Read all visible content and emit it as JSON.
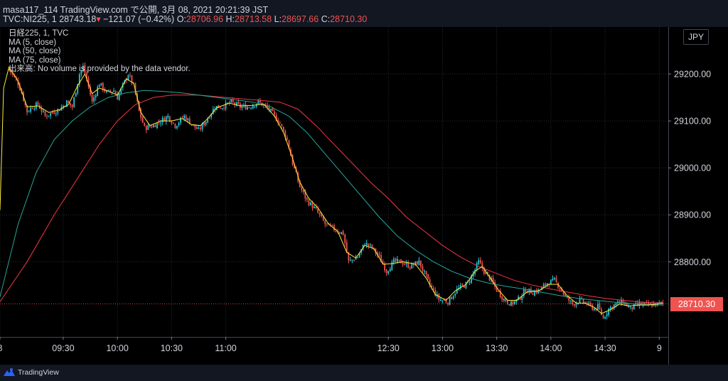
{
  "header": {
    "line1": "masa117_114 TradingView.com で公開, 3月 08, 2021 20:21:39 JST",
    "symbol": "TVC:NI225, 1",
    "last": "28743.18",
    "change": "−121.07 (−0.42%)",
    "o_label": "O:",
    "o_value": "28706.96",
    "h_label": "H:",
    "h_value": "28713.58",
    "l_label": "L:",
    "l_value": "28697.66",
    "c_label": "C:",
    "c_value": "28710.30"
  },
  "legend": {
    "title": "日経225, 1, TVC",
    "ma5": "MA (5, close)",
    "ma50": "MA (50, close)",
    "ma75": "MA (75, close)",
    "volume_note": "出来高: No volume is provided by the data vendor."
  },
  "axis": {
    "currency": "JPY",
    "last_price_tag": "28710.30"
  },
  "footer": {
    "brand": "TradingView"
  },
  "colors": {
    "background": "#000000",
    "up": "#26c6da",
    "down": "#ef5350",
    "ma5": "#ffeb3b",
    "ma50": "#26a69a",
    "ma75": "#f23645",
    "grid": "#2a2e39",
    "text": "#d1d4dc"
  },
  "chart_data": {
    "type": "candlestick",
    "title": "日経225, 1, TVC",
    "ylim": [
      28640,
      29300
    ],
    "y_ticks": [
      29200,
      29100,
      29000,
      28900,
      28800
    ],
    "y_tick_labels": [
      "29200.00",
      "29100.00",
      "29000.00",
      "28900.00",
      "28800.00"
    ],
    "x_range_minutes": [
      535,
      905
    ],
    "x_ticks": [
      {
        "t": 535,
        "label": "8"
      },
      {
        "t": 570,
        "label": "09:30"
      },
      {
        "t": 600,
        "label": "10:00"
      },
      {
        "t": 630,
        "label": "10:30"
      },
      {
        "t": 660,
        "label": "11:00"
      },
      {
        "t": 750,
        "label": "12:30"
      },
      {
        "t": 780,
        "label": "13:00"
      },
      {
        "t": 810,
        "label": "13:30"
      },
      {
        "t": 840,
        "label": "14:00"
      },
      {
        "t": 870,
        "label": "14:30"
      },
      {
        "t": 900,
        "label": "9"
      }
    ],
    "last_close": 28710.3,
    "series_path": [
      [
        540,
        29210
      ],
      [
        545,
        29180
      ],
      [
        547,
        29160
      ],
      [
        550,
        29120
      ],
      [
        553,
        29130
      ],
      [
        556,
        29135
      ],
      [
        560,
        29110
      ],
      [
        565,
        29120
      ],
      [
        568,
        29125
      ],
      [
        572,
        29140
      ],
      [
        575,
        29130
      ],
      [
        579,
        29200
      ],
      [
        581,
        29215
      ],
      [
        583,
        29190
      ],
      [
        586,
        29140
      ],
      [
        590,
        29180
      ],
      [
        594,
        29160
      ],
      [
        598,
        29165
      ],
      [
        600,
        29150
      ],
      [
        603,
        29175
      ],
      [
        606,
        29200
      ],
      [
        609,
        29175
      ],
      [
        612,
        29120
      ],
      [
        615,
        29085
      ],
      [
        620,
        29090
      ],
      [
        624,
        29100
      ],
      [
        628,
        29110
      ],
      [
        632,
        29090
      ],
      [
        637,
        29110
      ],
      [
        642,
        29090
      ],
      [
        645,
        29080
      ],
      [
        649,
        29100
      ],
      [
        654,
        29130
      ],
      [
        658,
        29130
      ],
      [
        663,
        29140
      ],
      [
        668,
        29130
      ],
      [
        673,
        29130
      ],
      [
        678,
        29140
      ],
      [
        684,
        29125
      ],
      [
        690,
        29095
      ],
      [
        694,
        29060
      ],
      [
        697,
        29010
      ],
      [
        701,
        28960
      ],
      [
        705,
        28930
      ],
      [
        710,
        28910
      ],
      [
        715,
        28880
      ],
      [
        720,
        28870
      ],
      [
        725,
        28860
      ],
      [
        728,
        28800
      ],
      [
        733,
        28810
      ],
      [
        737,
        28840
      ],
      [
        741,
        28830
      ],
      [
        745,
        28810
      ],
      [
        749,
        28780
      ],
      [
        753,
        28800
      ],
      [
        757,
        28800
      ],
      [
        762,
        28790
      ],
      [
        767,
        28800
      ],
      [
        773,
        28750
      ],
      [
        778,
        28720
      ],
      [
        783,
        28715
      ],
      [
        788,
        28740
      ],
      [
        794,
        28755
      ],
      [
        797,
        28775
      ],
      [
        800,
        28800
      ],
      [
        803,
        28780
      ],
      [
        807,
        28760
      ],
      [
        810,
        28740
      ],
      [
        814,
        28720
      ],
      [
        818,
        28710
      ],
      [
        822,
        28720
      ],
      [
        826,
        28740
      ],
      [
        830,
        28735
      ],
      [
        834,
        28740
      ],
      [
        838,
        28755
      ],
      [
        842,
        28760
      ],
      [
        845,
        28745
      ],
      [
        848,
        28725
      ],
      [
        852,
        28710
      ],
      [
        856,
        28718
      ],
      [
        860,
        28710
      ],
      [
        864,
        28700
      ],
      [
        866,
        28705
      ],
      [
        869,
        28680
      ],
      [
        872,
        28700
      ],
      [
        876,
        28710
      ],
      [
        880,
        28715
      ],
      [
        884,
        28700
      ],
      [
        889,
        28710
      ],
      [
        894,
        28708
      ],
      [
        899,
        28710
      ],
      [
        902,
        28712
      ]
    ],
    "ma5_path": [
      [
        535,
        28910
      ],
      [
        537,
        29170
      ],
      [
        540,
        29215
      ],
      [
        545,
        29185
      ],
      [
        550,
        29130
      ],
      [
        556,
        29132
      ],
      [
        562,
        29118
      ],
      [
        568,
        29124
      ],
      [
        573,
        29135
      ],
      [
        578,
        29175
      ],
      [
        582,
        29200
      ],
      [
        586,
        29158
      ],
      [
        590,
        29170
      ],
      [
        596,
        29162
      ],
      [
        600,
        29155
      ],
      [
        605,
        29190
      ],
      [
        609,
        29180
      ],
      [
        613,
        29118
      ],
      [
        618,
        29090
      ],
      [
        624,
        29100
      ],
      [
        630,
        29100
      ],
      [
        636,
        29105
      ],
      [
        641,
        29092
      ],
      [
        646,
        29090
      ],
      [
        650,
        29105
      ],
      [
        655,
        29128
      ],
      [
        662,
        29138
      ],
      [
        668,
        29132
      ],
      [
        675,
        29133
      ],
      [
        681,
        29136
      ],
      [
        687,
        29110
      ],
      [
        692,
        29075
      ],
      [
        697,
        29020
      ],
      [
        701,
        28970
      ],
      [
        706,
        28935
      ],
      [
        711,
        28915
      ],
      [
        717,
        28880
      ],
      [
        722,
        28865
      ],
      [
        727,
        28820
      ],
      [
        732,
        28808
      ],
      [
        737,
        28835
      ],
      [
        742,
        28828
      ],
      [
        747,
        28795
      ],
      [
        752,
        28796
      ],
      [
        758,
        28800
      ],
      [
        765,
        28795
      ],
      [
        771,
        28765
      ],
      [
        776,
        28730
      ],
      [
        782,
        28718
      ],
      [
        787,
        28738
      ],
      [
        793,
        28752
      ],
      [
        798,
        28780
      ],
      [
        802,
        28790
      ],
      [
        806,
        28768
      ],
      [
        811,
        28740
      ],
      [
        816,
        28718
      ],
      [
        821,
        28718
      ],
      [
        827,
        28736
      ],
      [
        833,
        28738
      ],
      [
        839,
        28752
      ],
      [
        844,
        28752
      ],
      [
        849,
        28728
      ],
      [
        854,
        28712
      ],
      [
        859,
        28712
      ],
      [
        864,
        28703
      ],
      [
        868,
        28690
      ],
      [
        873,
        28698
      ],
      [
        878,
        28710
      ],
      [
        883,
        28706
      ],
      [
        889,
        28708
      ],
      [
        894,
        28708
      ],
      [
        899,
        28710
      ],
      [
        902,
        28712
      ]
    ],
    "ma50_path": [
      [
        535,
        28725
      ],
      [
        545,
        28880
      ],
      [
        555,
        28990
      ],
      [
        565,
        29060
      ],
      [
        575,
        29100
      ],
      [
        585,
        29130
      ],
      [
        595,
        29150
      ],
      [
        605,
        29160
      ],
      [
        615,
        29165
      ],
      [
        625,
        29163
      ],
      [
        635,
        29160
      ],
      [
        645,
        29155
      ],
      [
        655,
        29150
      ],
      [
        665,
        29145
      ],
      [
        675,
        29140
      ],
      [
        685,
        29130
      ],
      [
        695,
        29110
      ],
      [
        705,
        29075
      ],
      [
        715,
        29030
      ],
      [
        725,
        28985
      ],
      [
        735,
        28940
      ],
      [
        745,
        28895
      ],
      [
        755,
        28855
      ],
      [
        765,
        28825
      ],
      [
        775,
        28800
      ],
      [
        785,
        28780
      ],
      [
        795,
        28765
      ],
      [
        805,
        28755
      ],
      [
        815,
        28748
      ],
      [
        825,
        28742
      ],
      [
        835,
        28735
      ],
      [
        845,
        28728
      ],
      [
        855,
        28722
      ],
      [
        865,
        28718
      ],
      [
        875,
        28714
      ],
      [
        885,
        28711
      ],
      [
        902,
        28708
      ]
    ],
    "ma75_path": [
      [
        535,
        28715
      ],
      [
        550,
        28800
      ],
      [
        565,
        28900
      ],
      [
        580,
        28990
      ],
      [
        590,
        29050
      ],
      [
        600,
        29100
      ],
      [
        610,
        29135
      ],
      [
        620,
        29150
      ],
      [
        630,
        29155
      ],
      [
        645,
        29155
      ],
      [
        660,
        29150
      ],
      [
        675,
        29145
      ],
      [
        690,
        29140
      ],
      [
        700,
        29125
      ],
      [
        710,
        29090
      ],
      [
        720,
        29050
      ],
      [
        730,
        29010
      ],
      [
        740,
        28970
      ],
      [
        750,
        28935
      ],
      [
        760,
        28895
      ],
      [
        770,
        28865
      ],
      [
        780,
        28835
      ],
      [
        790,
        28810
      ],
      [
        800,
        28790
      ],
      [
        810,
        28775
      ],
      [
        820,
        28760
      ],
      [
        830,
        28750
      ],
      [
        840,
        28742
      ],
      [
        850,
        28735
      ],
      [
        860,
        28728
      ],
      [
        870,
        28722
      ],
      [
        880,
        28718
      ],
      [
        890,
        28714
      ],
      [
        902,
        28712
      ]
    ]
  }
}
